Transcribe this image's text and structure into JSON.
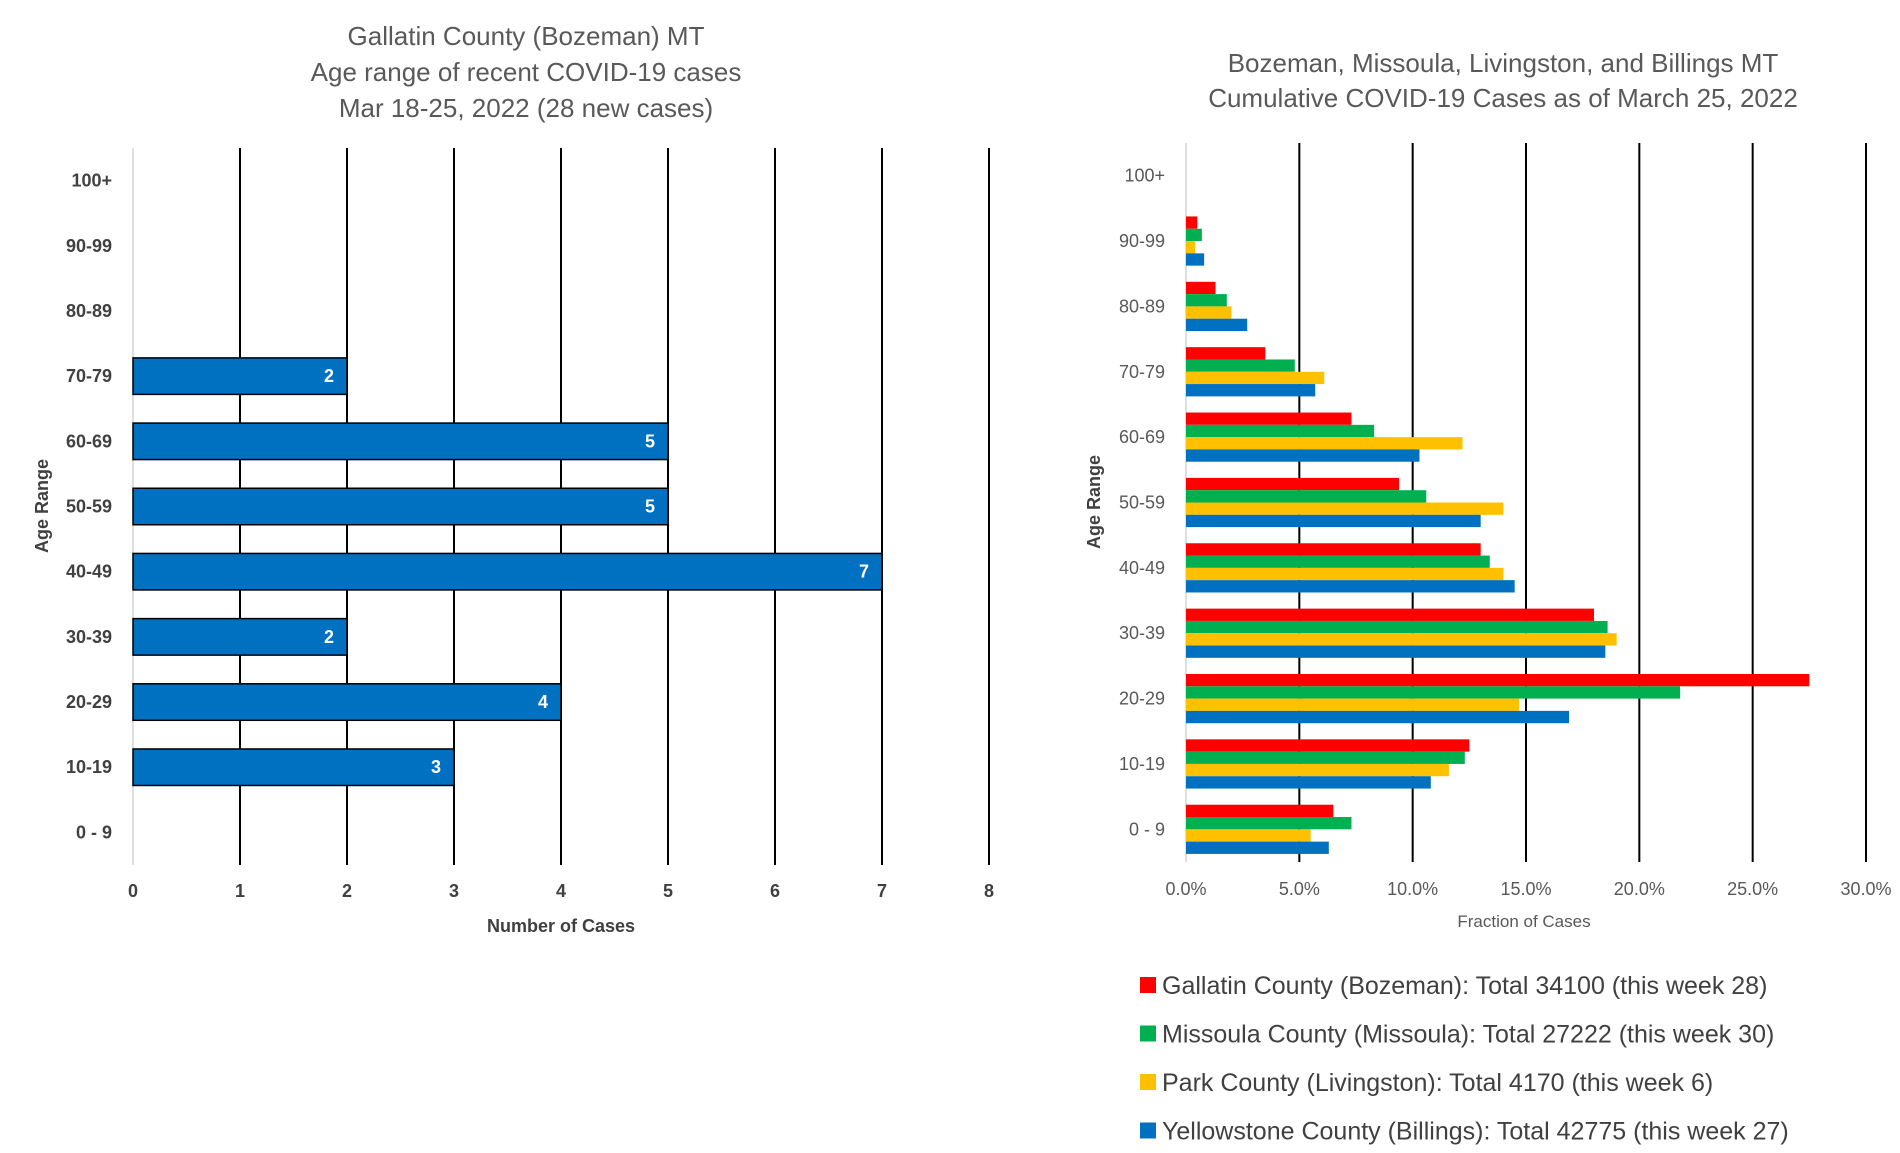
{
  "chart_data": [
    {
      "type": "bar",
      "orientation": "horizontal",
      "title_lines": [
        "Gallatin County (Bozeman) MT",
        "Age range of recent COVID-19 cases",
        "Mar 18-25, 2022 (28 new cases)"
      ],
      "categories": [
        "0 - 9",
        "10-19",
        "20-29",
        "30-39",
        "40-49",
        "50-59",
        "60-69",
        "70-79",
        "80-89",
        "90-99",
        "100+"
      ],
      "values": [
        0,
        3,
        4,
        2,
        7,
        5,
        5,
        2,
        0,
        0,
        0
      ],
      "data_labels": [
        "",
        "3",
        "4",
        "2",
        "7",
        "5",
        "5",
        "2",
        "",
        "",
        ""
      ],
      "xlabel": "Number of Cases",
      "ylabel": "Age Range",
      "xlim": [
        0,
        8
      ],
      "xticks": [
        "0",
        "1",
        "2",
        "3",
        "4",
        "5",
        "6",
        "7",
        "8"
      ],
      "grid": "vertical",
      "bar_color": "#0070c0"
    },
    {
      "type": "bar",
      "orientation": "horizontal",
      "title_lines": [
        "Bozeman, Missoula, Livingston, and Billings MT",
        "Cumulative COVID-19 Cases as of March 25, 2022"
      ],
      "categories": [
        "0 - 9",
        "10-19",
        "20-29",
        "30-39",
        "40-49",
        "50-59",
        "60-69",
        "70-79",
        "80-89",
        "90-99",
        "100+"
      ],
      "series": [
        {
          "name": "Gallatin County (Bozeman): Total 34100 (this week 28)",
          "color": "#ff0000",
          "values": [
            0.065,
            0.125,
            0.275,
            0.18,
            0.13,
            0.094,
            0.073,
            0.035,
            0.013,
            0.005,
            0.0
          ]
        },
        {
          "name": "Missoula County (Missoula): Total 27222 (this week 30)",
          "color": "#00b050",
          "values": [
            0.073,
            0.123,
            0.218,
            0.186,
            0.134,
            0.106,
            0.083,
            0.048,
            0.018,
            0.007,
            0.0
          ]
        },
        {
          "name": "Park County (Livingston): Total 4170 (this week 6)",
          "color": "#ffc000",
          "values": [
            0.055,
            0.116,
            0.147,
            0.19,
            0.14,
            0.14,
            0.122,
            0.061,
            0.02,
            0.004,
            0.0
          ]
        },
        {
          "name": "Yellowstone County (Billings): Total 42775 (this week 27)",
          "color": "#0070c0",
          "values": [
            0.063,
            0.108,
            0.169,
            0.185,
            0.145,
            0.13,
            0.103,
            0.057,
            0.027,
            0.008,
            0.0
          ]
        }
      ],
      "xlabel": "Fraction of Cases",
      "ylabel": "Age Range",
      "xlim": [
        0,
        0.3
      ],
      "xticks": [
        "0.0%",
        "5.0%",
        "10.0%",
        "15.0%",
        "20.0%",
        "25.0%",
        "30.0%"
      ],
      "grid": "vertical",
      "legend_placement": "bottom"
    }
  ]
}
